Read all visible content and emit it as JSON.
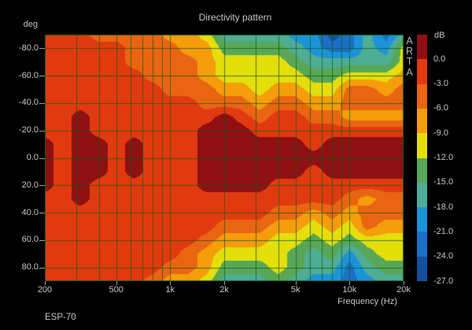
{
  "title": "Directivity pattern",
  "watermark": "ARTA",
  "footer_label": "ESP-70",
  "y_axis": {
    "unit_label": "deg",
    "ticks": [
      "-80.0",
      "-60.0",
      "-40.0",
      "-20.0",
      "0.0",
      "20.0",
      "40.0",
      "60.0",
      "80.0"
    ],
    "tick_angles_deg": [
      -80,
      -60,
      -40,
      -20,
      0,
      20,
      40,
      60,
      80
    ]
  },
  "x_axis": {
    "label": "Frequency (Hz)",
    "ticks": [
      "200",
      "500",
      "1k",
      "2k",
      "5k",
      "10k",
      "20k"
    ],
    "tick_freqs_hz": [
      200,
      500,
      1000,
      2000,
      5000,
      10000,
      20000
    ]
  },
  "colorbar": {
    "unit_label": "dB",
    "boundary_labels": [
      "0.0",
      "-3.0",
      "-6.0",
      "-9.0",
      "-12.0",
      "-15.0",
      "-18.0",
      "-21.0",
      "-24.0",
      "-27.0"
    ],
    "band_colors": [
      "#8e1013",
      "#e23a10",
      "#ea6512",
      "#f59d0b",
      "#e4de0b",
      "#58a757",
      "#4fac95",
      "#1b93d8",
      "#1b6fc6",
      "#174f9d"
    ]
  },
  "colors": {
    "background": "#010101",
    "text": "#c6c6c6",
    "grid_line": "rgba(20,90,20,0.75)",
    "plot_border": "rgba(20,90,20,0.9)"
  },
  "chart_data": {
    "type": "heatmap",
    "title": "Directivity pattern",
    "xlabel": "Frequency (Hz)",
    "ylabel": "deg",
    "x_scale": "log",
    "freq_range_hz": [
      200,
      20000
    ],
    "angle_range_deg": [
      -90,
      90
    ],
    "grid": true,
    "grid_freq_lines_hz": [
      200,
      300,
      400,
      500,
      600,
      700,
      800,
      900,
      1000,
      2000,
      3000,
      4000,
      5000,
      6000,
      7000,
      8000,
      9000,
      10000,
      20000
    ],
    "grid_angle_step_deg": 20,
    "legend_position": "right",
    "band_edges_db": [
      0,
      -3,
      -6,
      -9,
      -12,
      -15,
      -18,
      -21,
      -24,
      -27
    ],
    "frequencies_hz": [
      200,
      250,
      315,
      400,
      500,
      630,
      800,
      1000,
      1250,
      1600,
      2000,
      2500,
      3150,
      4000,
      5000,
      6300,
      8000,
      10000,
      12500,
      16000,
      20000
    ],
    "angles_deg": [
      -90,
      -80,
      -70,
      -60,
      -50,
      -40,
      -30,
      -20,
      -10,
      0,
      10,
      20,
      30,
      40,
      50,
      60,
      70,
      80,
      90
    ],
    "values_db": [
      [
        -1.5,
        -1.5,
        -1.5,
        -4.5,
        -4.5,
        -4.5,
        -4.5,
        -7.5,
        -7.5,
        -10.5,
        -16.5,
        -16.5,
        -16.5,
        -16.5,
        -19.5,
        -19.5,
        -25.5,
        -22.5,
        -16.5,
        -22.5,
        -16.5
      ],
      [
        -1.5,
        -1.5,
        -1.5,
        -1.5,
        -1.5,
        -4.5,
        -4.5,
        -4.5,
        -7.5,
        -7.5,
        -13.5,
        -13.5,
        -13.5,
        -13.5,
        -16.5,
        -19.5,
        -22.5,
        -22.5,
        -16.5,
        -19.5,
        -10.5
      ],
      [
        -1.5,
        -1.5,
        -1.5,
        -1.5,
        -1.5,
        -4.5,
        -4.5,
        -4.5,
        -4.5,
        -7.5,
        -10.5,
        -10.5,
        -10.5,
        -10.5,
        -13.5,
        -16.5,
        -16.5,
        -16.5,
        -16.5,
        -16.5,
        -10.5
      ],
      [
        -1.5,
        -1.5,
        -1.5,
        -1.5,
        -1.5,
        -1.5,
        -4.5,
        -4.5,
        -4.5,
        -7.5,
        -10.5,
        -10.5,
        -10.5,
        -10.5,
        -10.5,
        -13.5,
        -13.5,
        -10.5,
        -10.5,
        -10.5,
        -7.5
      ],
      [
        -1.5,
        -1.5,
        -1.5,
        -1.5,
        -1.5,
        -1.5,
        -1.5,
        -4.5,
        -4.5,
        -4.5,
        -7.5,
        -7.5,
        -10.5,
        -7.5,
        -7.5,
        -10.5,
        -10.5,
        -4.5,
        -4.5,
        -7.5,
        -4.5
      ],
      [
        -1.5,
        -1.5,
        -1.5,
        -1.5,
        -1.5,
        -1.5,
        -1.5,
        -1.5,
        -1.5,
        -4.5,
        -4.5,
        -4.5,
        -7.5,
        -4.5,
        -4.5,
        -7.5,
        -7.5,
        -4.5,
        -4.5,
        -4.5,
        -4.5
      ],
      [
        -1.5,
        -1.5,
        1.5,
        -1.5,
        -1.5,
        -1.5,
        -1.5,
        -1.5,
        -1.5,
        -1.5,
        1.5,
        -1.5,
        -4.5,
        -1.5,
        -1.5,
        -4.5,
        -4.5,
        -7.5,
        -7.5,
        -7.5,
        -7.5
      ],
      [
        -1.5,
        -1.5,
        1.5,
        -1.5,
        -1.5,
        -1.5,
        -1.5,
        -1.5,
        -1.5,
        1.5,
        1.5,
        1.5,
        -1.5,
        -1.5,
        -1.5,
        -1.5,
        -1.5,
        -1.5,
        -1.5,
        -1.5,
        -1.5
      ],
      [
        1.5,
        -1.5,
        1.5,
        1.5,
        -1.5,
        1.5,
        -1.5,
        -1.5,
        -1.5,
        1.5,
        1.5,
        1.5,
        1.5,
        1.5,
        1.5,
        -1.5,
        1.5,
        1.5,
        1.5,
        1.5,
        1.5
      ],
      [
        1.5,
        -1.5,
        1.5,
        1.5,
        -1.5,
        1.5,
        -1.5,
        -1.5,
        -1.5,
        1.5,
        1.5,
        1.5,
        1.5,
        1.5,
        1.5,
        1.5,
        1.5,
        1.5,
        1.5,
        1.5,
        1.5
      ],
      [
        1.5,
        -1.5,
        1.5,
        1.5,
        -1.5,
        1.5,
        -1.5,
        -1.5,
        -1.5,
        1.5,
        1.5,
        1.5,
        1.5,
        1.5,
        1.5,
        -1.5,
        1.5,
        1.5,
        1.5,
        1.5,
        1.5
      ],
      [
        1.5,
        -1.5,
        1.5,
        -1.5,
        -1.5,
        -1.5,
        -1.5,
        -1.5,
        -1.5,
        1.5,
        1.5,
        1.5,
        1.5,
        -1.5,
        -1.5,
        -1.5,
        -1.5,
        -1.5,
        -1.5,
        -1.5,
        -1.5
      ],
      [
        -1.5,
        -1.5,
        1.5,
        -1.5,
        -1.5,
        -1.5,
        -1.5,
        -1.5,
        -1.5,
        -1.5,
        -1.5,
        -1.5,
        -1.5,
        -1.5,
        -1.5,
        -1.5,
        -1.5,
        -4.5,
        -7.5,
        -4.5,
        -4.5
      ],
      [
        -1.5,
        -1.5,
        -1.5,
        -1.5,
        -1.5,
        -1.5,
        -1.5,
        -1.5,
        -1.5,
        -1.5,
        -1.5,
        -1.5,
        -1.5,
        -4.5,
        -4.5,
        -7.5,
        -4.5,
        -7.5,
        -4.5,
        -4.5,
        -4.5
      ],
      [
        -1.5,
        -1.5,
        -1.5,
        -1.5,
        -1.5,
        -1.5,
        -1.5,
        -1.5,
        -1.5,
        -1.5,
        -4.5,
        -4.5,
        -4.5,
        -7.5,
        -7.5,
        -10.5,
        -7.5,
        -10.5,
        -4.5,
        -7.5,
        -7.5
      ],
      [
        -1.5,
        -1.5,
        -1.5,
        -1.5,
        -1.5,
        -1.5,
        -1.5,
        -1.5,
        -1.5,
        -4.5,
        -7.5,
        -7.5,
        -7.5,
        -10.5,
        -10.5,
        -13.5,
        -10.5,
        -13.5,
        -10.5,
        -10.5,
        -10.5
      ],
      [
        -1.5,
        -1.5,
        -1.5,
        -1.5,
        -1.5,
        -1.5,
        -1.5,
        -1.5,
        -4.5,
        -7.5,
        -10.5,
        -10.5,
        -10.5,
        -10.5,
        -13.5,
        -16.5,
        -13.5,
        -19.5,
        -13.5,
        -10.5,
        -10.5
      ],
      [
        -1.5,
        -1.5,
        -1.5,
        -1.5,
        -1.5,
        -1.5,
        -1.5,
        -4.5,
        -4.5,
        -7.5,
        -13.5,
        -13.5,
        -13.5,
        -10.5,
        -13.5,
        -16.5,
        -16.5,
        -22.5,
        -16.5,
        -13.5,
        -13.5
      ],
      [
        -1.5,
        -1.5,
        -1.5,
        -1.5,
        -1.5,
        -1.5,
        -4.5,
        -7.5,
        -7.5,
        -10.5,
        -16.5,
        -16.5,
        -16.5,
        -13.5,
        -16.5,
        -19.5,
        -19.5,
        -22.5,
        -19.5,
        -16.5,
        -16.5
      ]
    ],
    "band_colors": [
      "#8e1013",
      "#e23a10",
      "#ea6512",
      "#f59d0b",
      "#e4de0b",
      "#58a757",
      "#4fac95",
      "#1b93d8",
      "#1b6fc6",
      "#174f9d"
    ]
  }
}
